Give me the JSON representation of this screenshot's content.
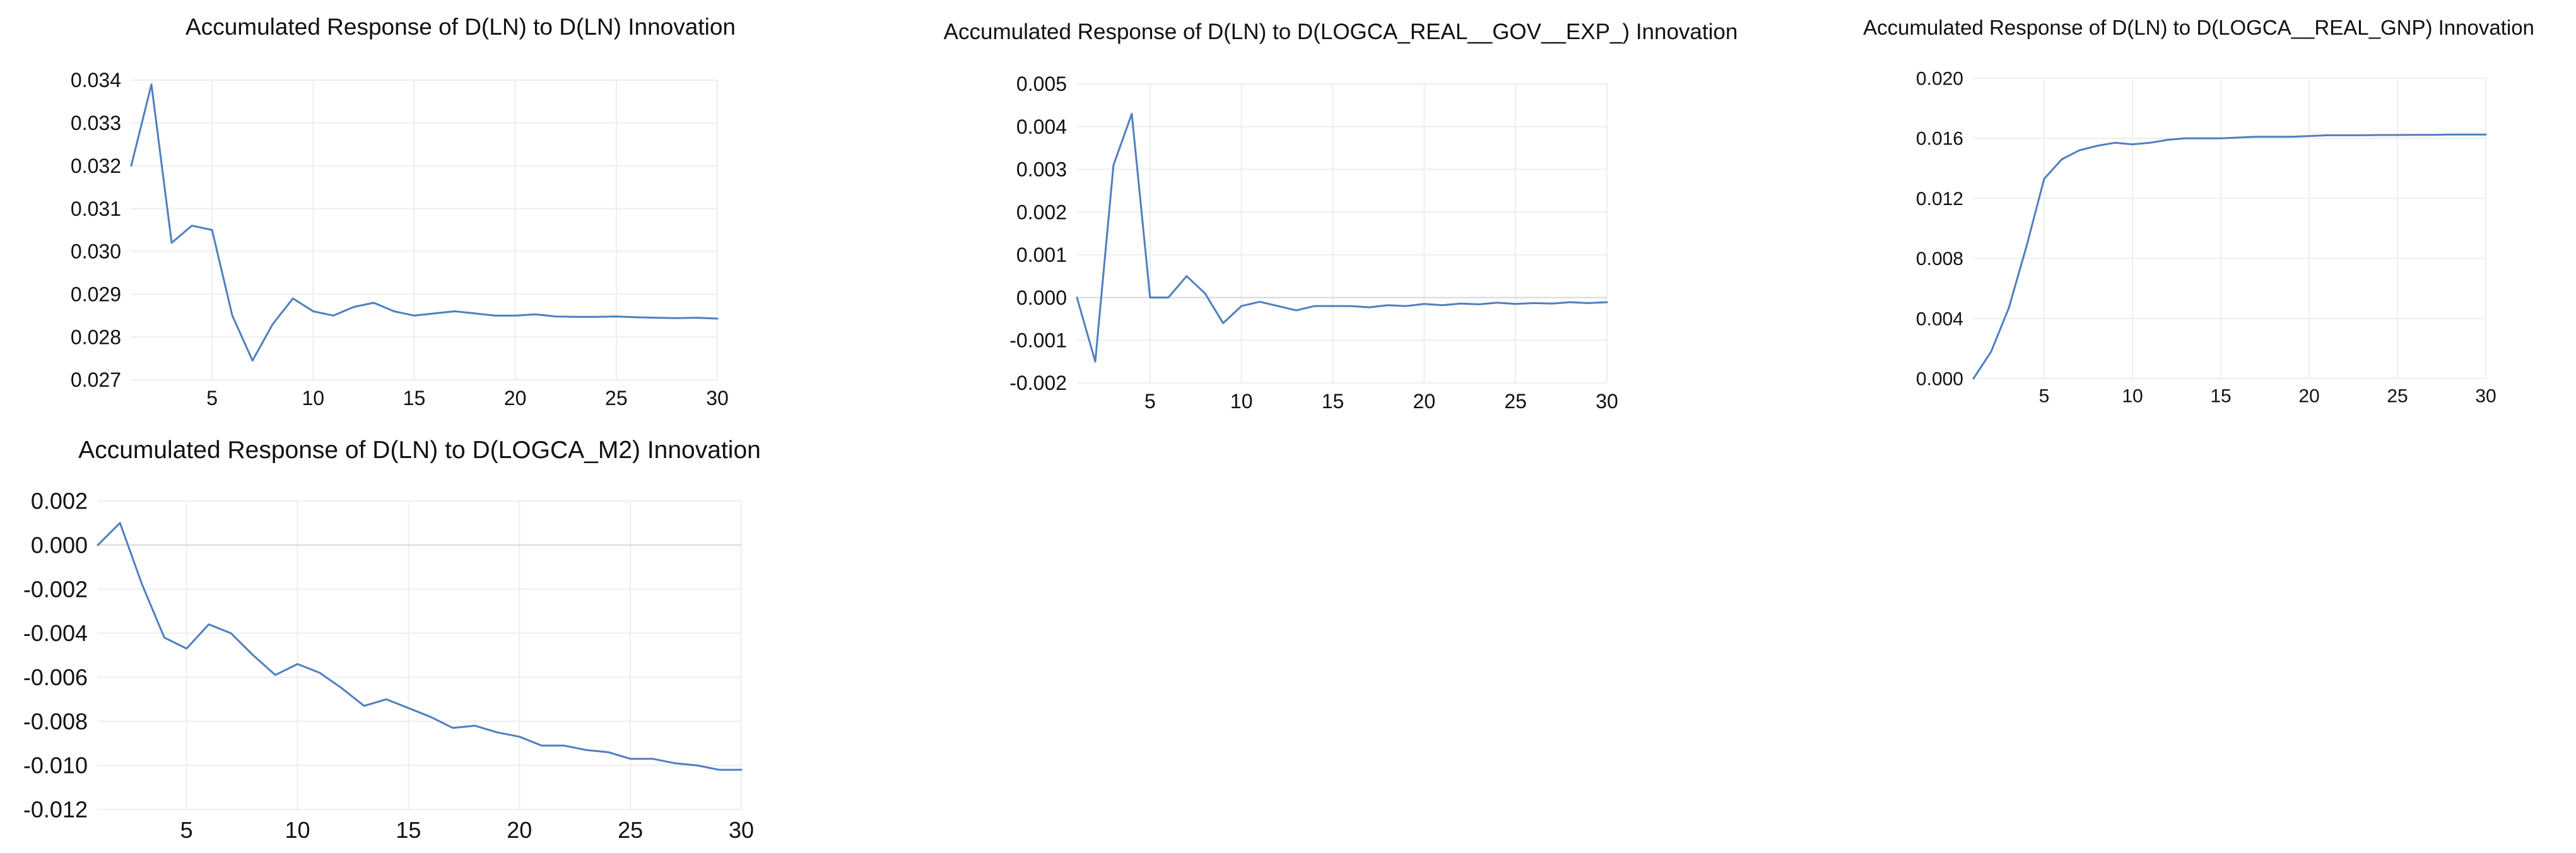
{
  "theme": {
    "line_color": "#4f7fbf"
  },
  "chart_data": [
    {
      "type": "line",
      "title": "Accumulated Response of D(LN) to D(LN) Innovation",
      "x": [
        1,
        2,
        3,
        4,
        5,
        6,
        7,
        8,
        9,
        10,
        11,
        12,
        13,
        14,
        15,
        16,
        17,
        18,
        19,
        20,
        21,
        22,
        23,
        24,
        25,
        26,
        27,
        28,
        29,
        30
      ],
      "series": [
        {
          "values": [
            0.032,
            0.0339,
            0.0302,
            0.0306,
            0.0305,
            0.0285,
            0.02745,
            0.0283,
            0.0289,
            0.0286,
            0.0285,
            0.0287,
            0.0288,
            0.0286,
            0.0285,
            0.02855,
            0.0286,
            0.02855,
            0.0285,
            0.0285,
            0.02853,
            0.02848,
            0.02847,
            0.02847,
            0.02848,
            0.02846,
            0.02845,
            0.02844,
            0.02845,
            0.02843
          ]
        }
      ],
      "xlim": [
        1,
        30
      ],
      "ylim": [
        0.027,
        0.034
      ],
      "xticks": [
        5,
        10,
        15,
        20,
        25,
        30
      ],
      "yticks": [
        0.027,
        0.028,
        0.029,
        0.03,
        0.031,
        0.032,
        0.033,
        0.034
      ],
      "x_tick_labels": [
        "5",
        "10",
        "15",
        "20",
        "25",
        "30"
      ],
      "y_tick_labels": [
        "0.027",
        "0.028",
        "0.029",
        "0.030",
        "0.031",
        "0.032",
        "0.033",
        "0.034"
      ],
      "grid": true,
      "zero_line": false
    },
    {
      "type": "line",
      "title": "Accumulated Response of D(LN) to D(LOGCA_REAL__GOV__EXP_) Innovation",
      "x": [
        1,
        2,
        3,
        4,
        5,
        6,
        7,
        8,
        9,
        10,
        11,
        12,
        13,
        14,
        15,
        16,
        17,
        18,
        19,
        20,
        21,
        22,
        23,
        24,
        25,
        26,
        27,
        28,
        29,
        30
      ],
      "series": [
        {
          "values": [
            0.0,
            -0.0015,
            0.0031,
            0.0043,
            0.0,
            0.0,
            0.0005,
            0.0001,
            -0.0006,
            -0.0002,
            -0.0001,
            -0.0002,
            -0.0003,
            -0.0002,
            -0.0002,
            -0.0002,
            -0.00023,
            -0.00018,
            -0.0002,
            -0.00015,
            -0.00018,
            -0.00014,
            -0.00016,
            -0.00012,
            -0.00015,
            -0.00013,
            -0.00014,
            -0.00011,
            -0.00013,
            -0.00011
          ]
        }
      ],
      "xlim": [
        1,
        30
      ],
      "ylim": [
        -0.002,
        0.005
      ],
      "xticks": [
        5,
        10,
        15,
        20,
        25,
        30
      ],
      "yticks": [
        -0.002,
        -0.001,
        0.0,
        0.001,
        0.002,
        0.003,
        0.004,
        0.005
      ],
      "x_tick_labels": [
        "5",
        "10",
        "15",
        "20",
        "25",
        "30"
      ],
      "y_tick_labels": [
        "-0.002",
        "-0.001",
        "0.000",
        "0.001",
        "0.002",
        "0.003",
        "0.004",
        "0.005"
      ],
      "grid": true,
      "zero_line": true
    },
    {
      "type": "line",
      "title": "Accumulated Response of D(LN) to D(LOGCA__REAL_GNP) Innovation",
      "x": [
        1,
        2,
        3,
        4,
        5,
        6,
        7,
        8,
        9,
        10,
        11,
        12,
        13,
        14,
        15,
        16,
        17,
        18,
        19,
        20,
        21,
        22,
        23,
        24,
        25,
        26,
        27,
        28,
        29,
        30
      ],
      "series": [
        {
          "values": [
            0.0,
            0.0018,
            0.0047,
            0.0088,
            0.0133,
            0.0146,
            0.0152,
            0.0155,
            0.0157,
            0.0156,
            0.0157,
            0.0159,
            0.016,
            0.016,
            0.016,
            0.01605,
            0.0161,
            0.0161,
            0.0161,
            0.01615,
            0.0162,
            0.0162,
            0.0162,
            0.01622,
            0.01622,
            0.01623,
            0.01623,
            0.01625,
            0.01625,
            0.01625
          ]
        }
      ],
      "xlim": [
        1,
        30
      ],
      "ylim": [
        0.0,
        0.02
      ],
      "xticks": [
        5,
        10,
        15,
        20,
        25,
        30
      ],
      "yticks": [
        0.0,
        0.004,
        0.008,
        0.012,
        0.016,
        0.02
      ],
      "x_tick_labels": [
        "5",
        "10",
        "15",
        "20",
        "25",
        "30"
      ],
      "y_tick_labels": [
        "0.000",
        "0.004",
        "0.008",
        "0.012",
        "0.016",
        "0.020"
      ],
      "grid": true,
      "zero_line": false
    },
    {
      "type": "line",
      "title": "Accumulated Response of D(LN) to D(LOGCA_M2) Innovation",
      "x": [
        1,
        2,
        3,
        4,
        5,
        6,
        7,
        8,
        9,
        10,
        11,
        12,
        13,
        14,
        15,
        16,
        17,
        18,
        19,
        20,
        21,
        22,
        23,
        24,
        25,
        26,
        27,
        28,
        29,
        30
      ],
      "series": [
        {
          "values": [
            0.0,
            0.001,
            -0.0018,
            -0.0042,
            -0.0047,
            -0.0036,
            -0.004,
            -0.005,
            -0.0059,
            -0.0054,
            -0.0058,
            -0.0065,
            -0.0073,
            -0.007,
            -0.0074,
            -0.0078,
            -0.0083,
            -0.0082,
            -0.0085,
            -0.0087,
            -0.0091,
            -0.0091,
            -0.0093,
            -0.0094,
            -0.0097,
            -0.0097,
            -0.0099,
            -0.01,
            -0.0102,
            -0.0102
          ]
        }
      ],
      "xlim": [
        1,
        30
      ],
      "ylim": [
        -0.012,
        0.002
      ],
      "xticks": [
        5,
        10,
        15,
        20,
        25,
        30
      ],
      "yticks": [
        -0.012,
        -0.01,
        -0.008,
        -0.006,
        -0.004,
        -0.002,
        0.0,
        0.002
      ],
      "x_tick_labels": [
        "5",
        "10",
        "15",
        "20",
        "25",
        "30"
      ],
      "y_tick_labels": [
        "-0.012",
        "-0.010",
        "-0.008",
        "-0.006",
        "-0.004",
        "-0.002",
        "0.000",
        "0.002"
      ],
      "grid": true,
      "zero_line": true
    }
  ]
}
